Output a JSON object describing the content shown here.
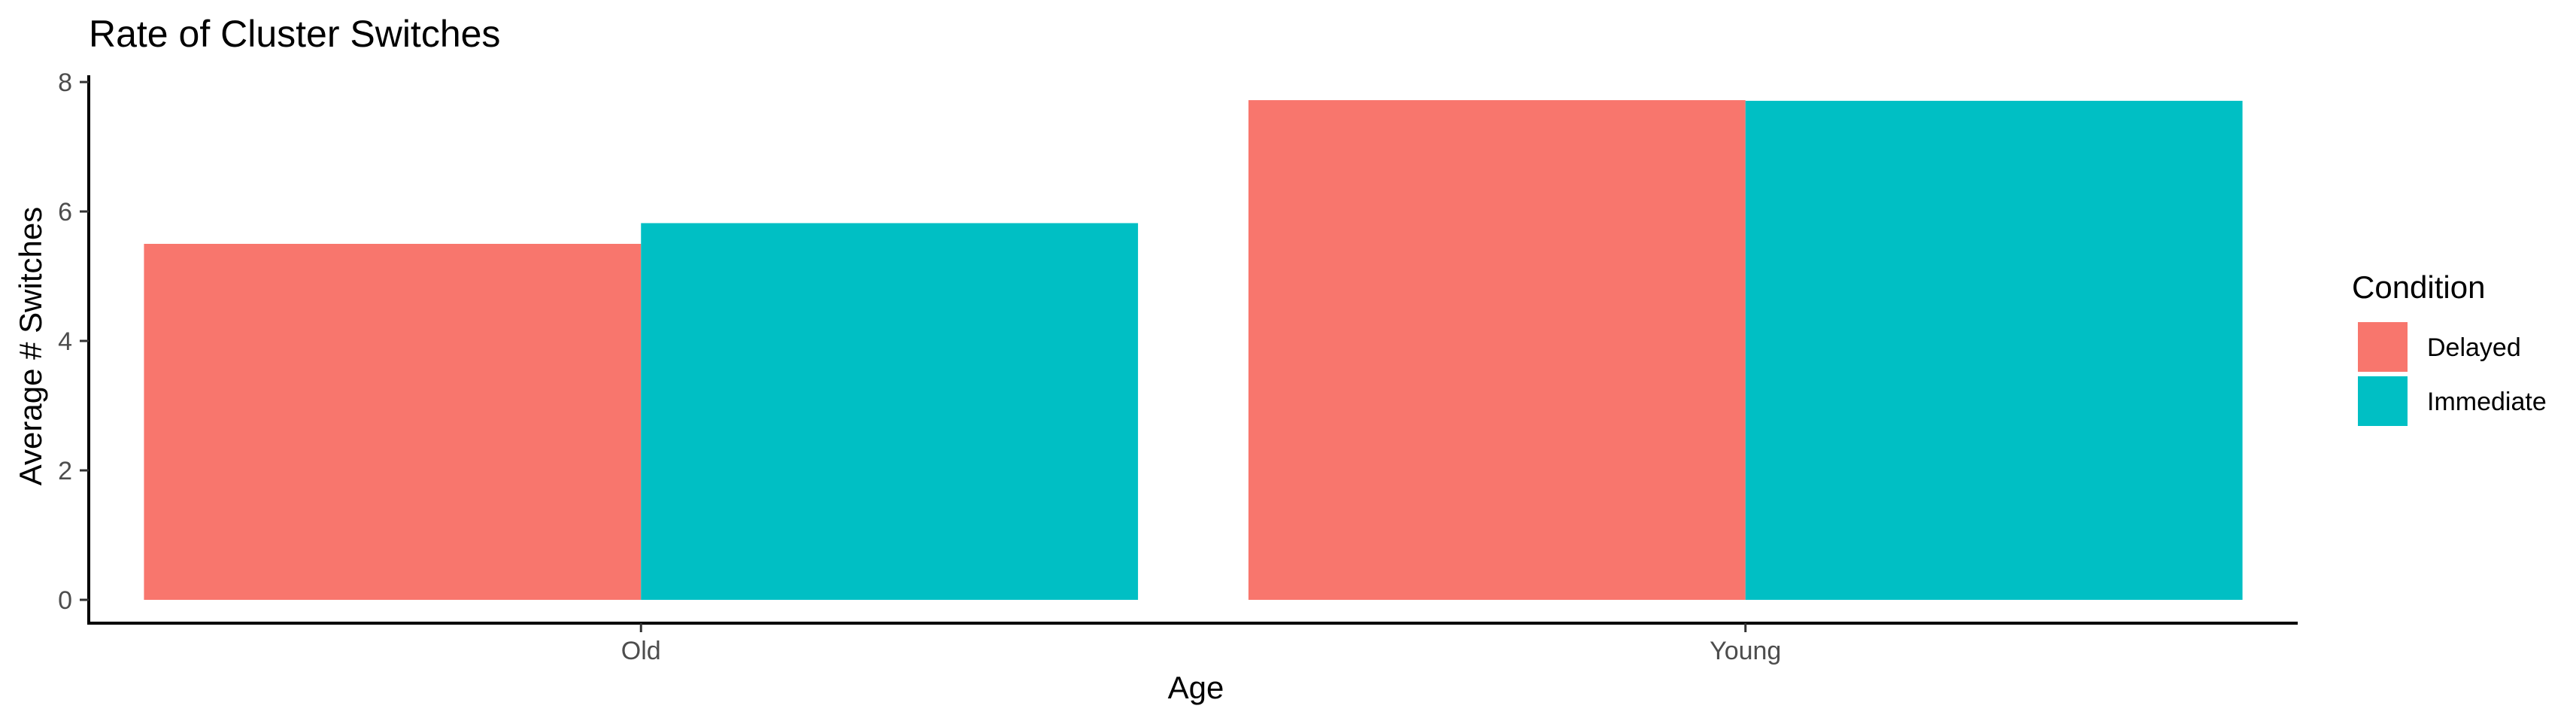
{
  "chart_data": {
    "type": "bar",
    "title": "Rate of Cluster Switches",
    "xlabel": "Age",
    "ylabel": "Average # Switches",
    "categories": [
      "Old",
      "Young"
    ],
    "series": [
      {
        "name": "Delayed",
        "values": [
          5.5,
          7.72
        ],
        "color": "#F8766D"
      },
      {
        "name": "Immediate",
        "values": [
          5.82,
          7.71
        ],
        "color": "#00BFC4"
      }
    ],
    "ylim": [
      0,
      8
    ],
    "yticks": [
      0,
      2,
      4,
      6,
      8
    ],
    "grid": false,
    "legend": {
      "title": "Condition",
      "position": "right"
    }
  }
}
